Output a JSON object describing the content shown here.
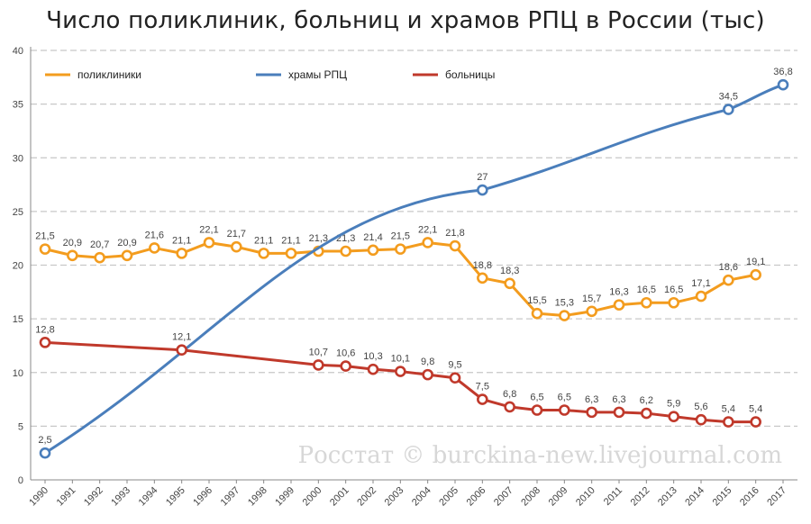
{
  "title": "Число поликлиник, больниц и храмов РПЦ в России (тыс)",
  "watermark": "Росстат © burckina-new.livejournal.com",
  "colors": {
    "polyclinics": "#f39c1e",
    "temples": "#4a7ebb",
    "hospitals": "#c0392b",
    "grid": "#c8c8c8",
    "axis": "#888888"
  },
  "chart_data": {
    "type": "line",
    "title": "Число поликлиник, больниц и храмов РПЦ в России (тыс)",
    "xlabel": "",
    "ylabel": "",
    "ylim": [
      0,
      40
    ],
    "yticks": [
      0,
      5,
      10,
      15,
      20,
      25,
      30,
      35,
      40
    ],
    "x": [
      "1990",
      "1991",
      "1992",
      "1993",
      "1994",
      "1995",
      "1996",
      "1997",
      "1998",
      "1999",
      "2000",
      "2001",
      "2002",
      "2003",
      "2004",
      "2005",
      "2006",
      "2007",
      "2008",
      "2009",
      "2010",
      "2011",
      "2012",
      "2013",
      "2014",
      "2015",
      "2016",
      "2017"
    ],
    "grid": true,
    "legend_position": "top-left",
    "series": [
      {
        "name": "поликлиники",
        "color": "#f39c1e",
        "x": [
          "1990",
          "1991",
          "1992",
          "1993",
          "1994",
          "1995",
          "1996",
          "1997",
          "1998",
          "1999",
          "2000",
          "2001",
          "2002",
          "2003",
          "2004",
          "2005",
          "2006",
          "2007",
          "2008",
          "2009",
          "2010",
          "2011",
          "2012",
          "2013",
          "2014",
          "2015",
          "2016"
        ],
        "values": [
          21.5,
          20.9,
          20.7,
          20.9,
          21.6,
          21.1,
          22.1,
          21.7,
          21.1,
          21.1,
          21.3,
          21.3,
          21.4,
          21.5,
          22.1,
          21.8,
          18.8,
          18.3,
          15.5,
          15.3,
          15.7,
          16.3,
          16.5,
          16.5,
          17.1,
          18.6,
          19.1
        ],
        "labels": [
          "21,5",
          "20,9",
          "20,7",
          "20,9",
          "21,6",
          "21,1",
          "22,1",
          "21,7",
          "21,1",
          "21,1",
          "21,3",
          "21,3",
          "21,4",
          "21,5",
          "22,1",
          "21,8",
          "18,8",
          "18,3",
          "15,5",
          "15,3",
          "15,7",
          "16,3",
          "16,5",
          "16,5",
          "17,1",
          "18,6",
          "19,1"
        ]
      },
      {
        "name": "храмы РПЦ",
        "color": "#4a7ebb",
        "x": [
          "1990",
          "2006",
          "2015",
          "2017"
        ],
        "values": [
          2.5,
          27,
          34.5,
          36.8
        ],
        "labels": [
          "2,5",
          "27",
          "34,5",
          "36,8"
        ]
      },
      {
        "name": "больницы",
        "color": "#c0392b",
        "x": [
          "1990",
          "1995",
          "2000",
          "2001",
          "2002",
          "2003",
          "2004",
          "2005",
          "2006",
          "2007",
          "2008",
          "2009",
          "2010",
          "2011",
          "2012",
          "2013",
          "2014",
          "2015",
          "2016"
        ],
        "values": [
          12.8,
          12.1,
          10.7,
          10.6,
          10.3,
          10.1,
          9.8,
          9.5,
          7.5,
          6.8,
          6.5,
          6.5,
          6.3,
          6.3,
          6.2,
          5.9,
          5.6,
          5.4,
          5.4
        ],
        "labels": [
          "12,8",
          "12,1",
          "10,7",
          "10,6",
          "10,3",
          "10,1",
          "9,8",
          "9,5",
          "7,5",
          "6,8",
          "6,5",
          "6,5",
          "6,3",
          "6,3",
          "6,2",
          "5,9",
          "5,6",
          "5,4",
          "5,4"
        ]
      }
    ]
  }
}
